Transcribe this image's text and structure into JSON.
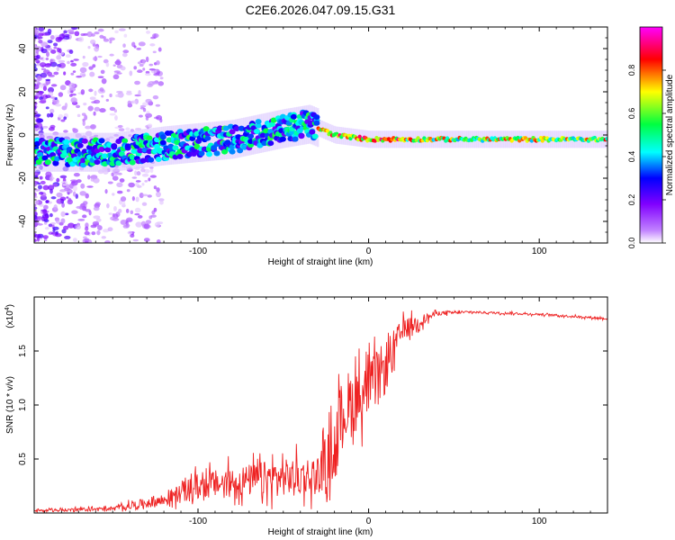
{
  "title": "C2E6.2026.047.09.15.G31",
  "chart_data": [
    {
      "type": "heatmap",
      "xlabel": "Height of straight line (km)",
      "ylabel": "Frequency (Hz)",
      "xlim": [
        -196,
        140
      ],
      "ylim": [
        -50,
        50
      ],
      "xticks": [
        -100,
        0,
        100
      ],
      "yticks": [
        -40,
        -20,
        0,
        20,
        40
      ],
      "colorbar": {
        "label": "Normalized spectral amplitude",
        "range": [
          0.0,
          1.0
        ],
        "ticks": [
          0.0,
          0.2,
          0.4,
          0.6,
          0.8
        ],
        "colors": [
          "#ffffff",
          "#a020f0",
          "#0000ff",
          "#00ffff",
          "#00ff00",
          "#ffff00",
          "#ff0000",
          "#ff00ff"
        ]
      },
      "ridge": {
        "description_points_km_hz": [
          [
            -196,
            -8
          ],
          [
            -150,
            -8
          ],
          [
            -120,
            -5
          ],
          [
            -80,
            -2
          ],
          [
            -50,
            3
          ],
          [
            -35,
            5
          ],
          [
            -20,
            0
          ],
          [
            0,
            -2
          ],
          [
            140,
            -2
          ]
        ]
      }
    },
    {
      "type": "line",
      "xlabel": "Height of straight line (km)",
      "ylabel": "SNR (10 * v/v)",
      "y_multiplier": "(x10",
      "y_multiplier_exp": "4",
      "y_multiplier_close": ")",
      "xlim": [
        -196,
        140
      ],
      "ylim": [
        0,
        2.0
      ],
      "xticks": [
        -100,
        0,
        100
      ],
      "yticks": [
        0.5,
        1.0,
        1.5
      ],
      "ytick_labels": [
        "0.5",
        "1.0",
        "1.5"
      ],
      "color": "#ee2222",
      "envelope_km": [
        -196,
        -150,
        -120,
        -100,
        -60,
        -30,
        -20,
        -15,
        0,
        10,
        20,
        40,
        60,
        100,
        140
      ],
      "envelope_mean": [
        0.02,
        0.04,
        0.12,
        0.25,
        0.32,
        0.35,
        0.6,
        0.95,
        1.15,
        1.35,
        1.7,
        1.85,
        1.86,
        1.84,
        1.8
      ],
      "envelope_noise": [
        0.01,
        0.02,
        0.06,
        0.12,
        0.16,
        0.18,
        0.3,
        0.35,
        0.25,
        0.25,
        0.1,
        0.02,
        0.01,
        0.01,
        0.01
      ]
    }
  ]
}
